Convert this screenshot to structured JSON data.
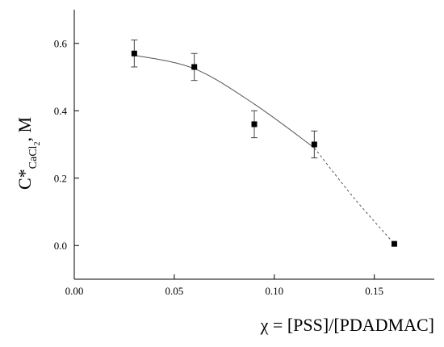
{
  "chart_data": {
    "type": "scatter",
    "title": "",
    "xlabel": "χ = [PSS]/[PDADMAC]",
    "ylabel_main": "C*",
    "ylabel_subscript": "CaCl",
    "ylabel_subsubscript": "2",
    "ylabel_unit": ", M",
    "xlim": [
      0.0,
      0.18
    ],
    "ylim": [
      -0.1,
      0.7
    ],
    "xticks": [
      {
        "value": 0.0,
        "label": "0.00"
      },
      {
        "value": 0.05,
        "label": "0.05"
      },
      {
        "value": 0.1,
        "label": "0.10"
      },
      {
        "value": 0.15,
        "label": "0.15"
      }
    ],
    "yticks": [
      {
        "value": 0.0,
        "label": "0.0"
      },
      {
        "value": 0.2,
        "label": "0.2"
      },
      {
        "value": 0.4,
        "label": "0.4"
      },
      {
        "value": 0.6,
        "label": "0.6"
      }
    ],
    "grid": false,
    "legend": "none",
    "series": [
      {
        "marker": "square",
        "color": "#000000",
        "points": [
          {
            "x": 0.03,
            "y": 0.57,
            "err": 0.04
          },
          {
            "x": 0.06,
            "y": 0.53,
            "err": 0.04
          },
          {
            "x": 0.09,
            "y": 0.36,
            "err": 0.04
          },
          {
            "x": 0.12,
            "y": 0.3,
            "err": 0.04
          },
          {
            "x": 0.16,
            "y": 0.005,
            "err": 0
          }
        ]
      }
    ],
    "fit_curve": {
      "solid": [
        {
          "x": 0.03,
          "y": 0.565
        },
        {
          "x": 0.06,
          "y": 0.525
        },
        {
          "x": 0.09,
          "y": 0.42
        },
        {
          "x": 0.12,
          "y": 0.29
        }
      ],
      "dashed": [
        {
          "x": 0.12,
          "y": 0.29
        },
        {
          "x": 0.14,
          "y": 0.14
        },
        {
          "x": 0.16,
          "y": 0.005
        }
      ]
    }
  }
}
